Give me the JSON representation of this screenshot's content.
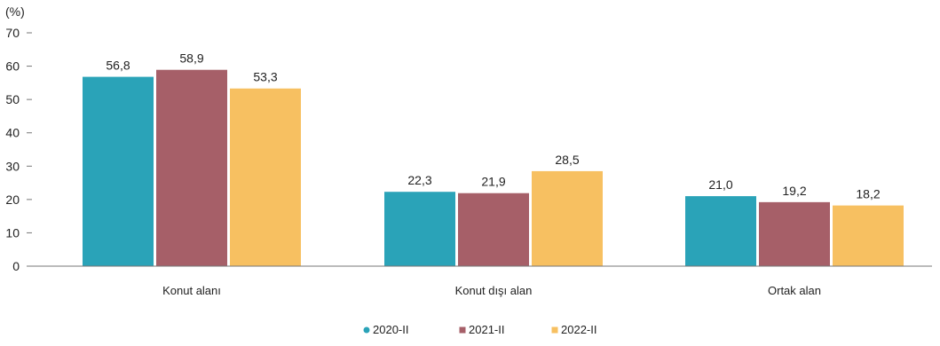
{
  "chart_data": {
    "type": "bar",
    "ylabel": "(%)",
    "ylim": [
      0,
      70
    ],
    "yticks": [
      0,
      10,
      20,
      30,
      40,
      50,
      60,
      70
    ],
    "categories": [
      "Konut alanı",
      "Konut dışı alan",
      "Ortak alan"
    ],
    "series": [
      {
        "name": "2020-II",
        "color": "#2aa3b8",
        "values": [
          56.8,
          22.3,
          21.0
        ],
        "labels": [
          "56,8",
          "22,3",
          "21,0"
        ]
      },
      {
        "name": "2021-II",
        "color": "#a65f68",
        "values": [
          58.9,
          21.9,
          19.2
        ],
        "labels": [
          "58,9",
          "21,9",
          "19,2"
        ]
      },
      {
        "name": "2022-II",
        "color": "#f7c061",
        "values": [
          53.3,
          28.5,
          18.2
        ],
        "labels": [
          "53,3",
          "28,5",
          "18,2"
        ]
      }
    ],
    "legend_position": "bottom",
    "grid": false
  }
}
